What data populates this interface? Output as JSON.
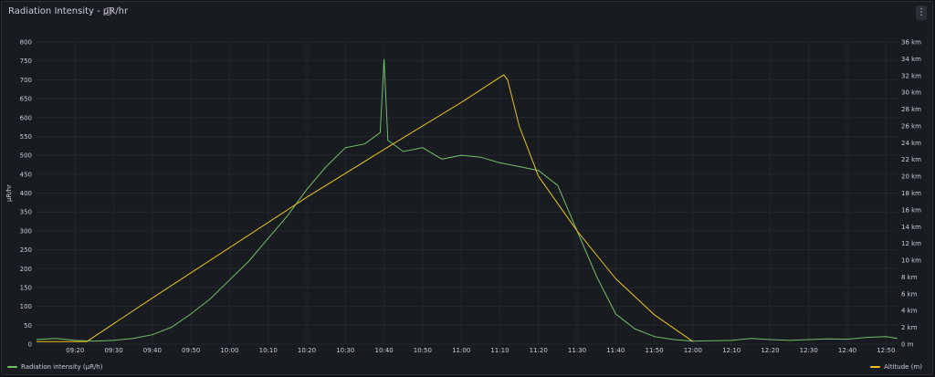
{
  "panel": {
    "title": "Radiation Intensity - μR/hr",
    "info_icon": "info-icon",
    "menu_icon": "kebab-icon",
    "menu_label": "⋮"
  },
  "colors": {
    "radiation": "#73bf69",
    "altitude": "#e8c317",
    "grid": "#24272e",
    "text": "#ccccdc"
  },
  "chart_data": {
    "type": "line",
    "xlabel": "",
    "ylabel_left": "μR/hr",
    "ylabel_right": "",
    "x_range": [
      "09:10",
      "12:53"
    ],
    "y_left_range": [
      0,
      800
    ],
    "y_right_range_km": [
      0,
      36
    ],
    "y_left_ticks": [
      0,
      50,
      100,
      150,
      200,
      250,
      300,
      350,
      400,
      450,
      500,
      550,
      600,
      650,
      700,
      750,
      800
    ],
    "y_right_ticks": [
      "0 m",
      "2 km",
      "4 km",
      "6 km",
      "8 km",
      "10 km",
      "12 km",
      "14 km",
      "16 km",
      "18 km",
      "20 km",
      "22 km",
      "24 km",
      "26 km",
      "28 km",
      "30 km",
      "32 km",
      "34 km",
      "36 km"
    ],
    "x_ticks": [
      "09:20",
      "09:30",
      "09:40",
      "09:50",
      "10:00",
      "10:10",
      "10:20",
      "10:30",
      "10:40",
      "10:50",
      "11:00",
      "11:10",
      "11:20",
      "11:30",
      "11:40",
      "11:50",
      "12:00",
      "12:10",
      "12:20",
      "12:30",
      "12:40",
      "12:50"
    ],
    "grid": true,
    "legend": "bottom",
    "series": [
      {
        "name": "Radiation intensity (μR/h)",
        "axis": "left",
        "x": [
          "09:10",
          "09:15",
          "09:20",
          "09:25",
          "09:30",
          "09:35",
          "09:40",
          "09:45",
          "09:50",
          "09:55",
          "10:00",
          "10:05",
          "10:10",
          "10:15",
          "10:20",
          "10:25",
          "10:30",
          "10:35",
          "10:39",
          "10:40",
          "10:41",
          "10:45",
          "10:50",
          "10:55",
          "11:00",
          "11:05",
          "11:10",
          "11:15",
          "11:20",
          "11:25",
          "11:30",
          "11:35",
          "11:40",
          "11:45",
          "11:50",
          "11:55",
          "12:00",
          "12:10",
          "12:15",
          "12:20",
          "12:25",
          "12:30",
          "12:35",
          "12:40",
          "12:45",
          "12:50",
          "12:53"
        ],
        "values": [
          12,
          15,
          10,
          8,
          10,
          15,
          25,
          45,
          80,
          120,
          170,
          220,
          280,
          340,
          410,
          470,
          520,
          530,
          560,
          755,
          540,
          510,
          520,
          490,
          500,
          495,
          480,
          470,
          460,
          420,
          300,
          180,
          80,
          40,
          20,
          12,
          8,
          10,
          15,
          12,
          10,
          12,
          14,
          13,
          18,
          20,
          15
        ]
      },
      {
        "name": "Altitude (m)",
        "axis": "right",
        "unit": "km",
        "x": [
          "09:10",
          "09:23",
          "09:40",
          "10:00",
          "10:20",
          "10:40",
          "11:00",
          "11:11",
          "11:12",
          "11:15",
          "11:20",
          "11:30",
          "11:40",
          "11:50",
          "12:00"
        ],
        "values": [
          0.3,
          0.3,
          5.5,
          11.5,
          17.5,
          23.2,
          28.8,
          32.1,
          31.5,
          26.0,
          20.0,
          13.5,
          7.8,
          3.5,
          0.3
        ]
      }
    ]
  }
}
